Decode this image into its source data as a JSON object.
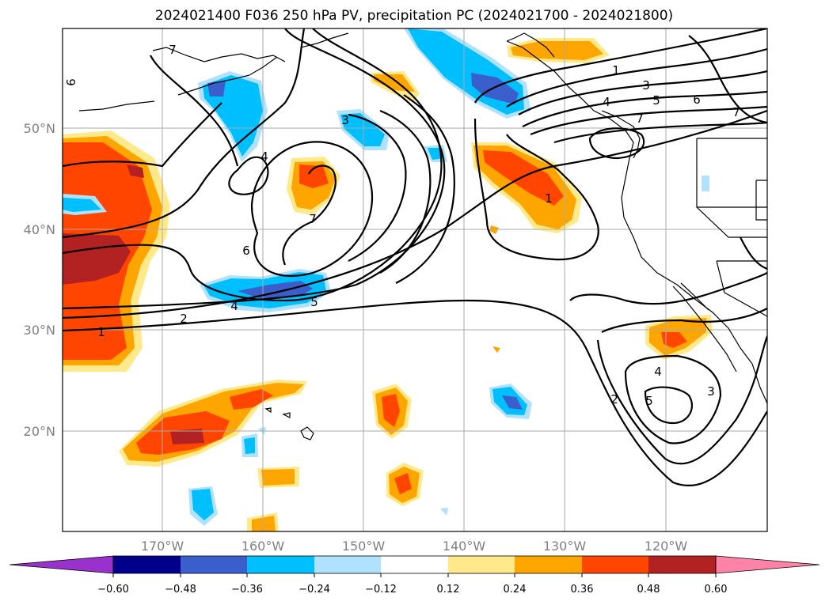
{
  "title": "2024021400 F036 250 hPa PV, precipitation PC (2024021700 - 2024021800)",
  "axes": {
    "lat_labels": [
      "50°N",
      "40°N",
      "30°N",
      "20°N"
    ],
    "lon_labels": [
      "170°W",
      "160°W",
      "150°W",
      "140°W",
      "130°W",
      "120°W"
    ]
  },
  "colorbar": {
    "ticks": [
      "−0.60",
      "−0.48",
      "−0.36",
      "−0.24",
      "−0.12",
      "0.12",
      "0.24",
      "0.36",
      "0.48",
      "0.60"
    ],
    "colors": [
      "#9932CC",
      "#00008B",
      "#3A5FCD",
      "#00BFFF",
      "#B0E2FF",
      "#FFFFFF",
      "#FFE98A",
      "#FFA500",
      "#FF4500",
      "#B22222",
      "#FF83A8"
    ]
  },
  "contour_labels": [
    "7",
    "9",
    "3",
    "4",
    "7",
    "6",
    "4",
    "5",
    "2",
    "1",
    "1",
    "3",
    "5",
    "6",
    "4",
    "7",
    "7",
    "1",
    "2",
    "4",
    "5",
    "3"
  ]
}
